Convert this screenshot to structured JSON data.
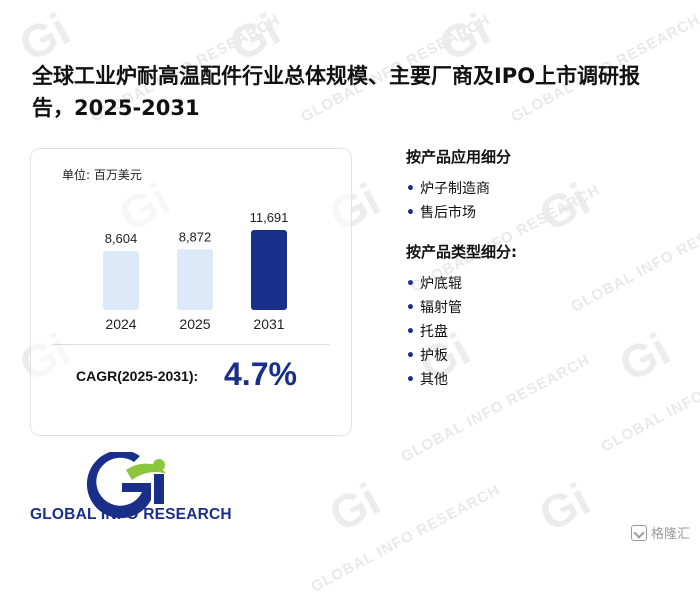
{
  "header": {
    "title": "全球工业炉耐高温配件行业总体规模、主要厂商及IPO上市调研报告，2025-2031"
  },
  "chart_data": {
    "type": "bar",
    "unit_label": "单位: 百万美元",
    "categories": [
      "2024",
      "2025",
      "2031"
    ],
    "values": [
      8604,
      8872,
      11691
    ],
    "value_labels": [
      "8,604",
      "8,872",
      "11,691"
    ],
    "highlight_index": 2,
    "colors": {
      "light": "#dbe9f8",
      "dark": "#1a2f8a"
    },
    "ylim": [
      0,
      13000
    ]
  },
  "cagr": {
    "label": "CAGR(2025-2031):",
    "value": "4.7%"
  },
  "segments": {
    "application_title": "按产品应用细分",
    "application_items": [
      "炉子制造商",
      "售后市场"
    ],
    "type_title": "按产品类型细分:",
    "type_items": [
      "炉底辊",
      "辐射管",
      "托盘",
      "护板",
      "其他"
    ]
  },
  "logo": {
    "text": "GLOBAL INFO RESEARCH",
    "colors": {
      "blue": "#1a2f8a",
      "green": "#8cc63f"
    }
  },
  "watermark": {
    "text": "GLOBAL INFO RESEARCH"
  },
  "corner_badge": {
    "text": "格隆汇"
  }
}
